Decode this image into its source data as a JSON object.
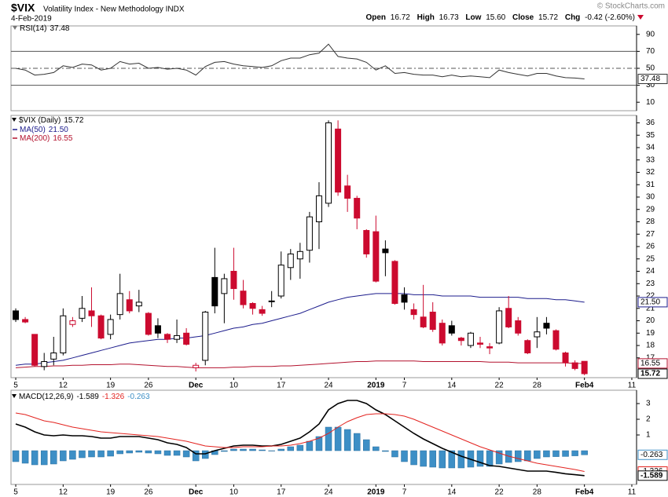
{
  "header": {
    "symbol": "$VIX",
    "name": "Volatility Index - New Methodology INDX",
    "date": "4-Feb-2019",
    "watermark": "© StockCharts.com",
    "open_label": "Open",
    "open": "16.72",
    "high_label": "High",
    "high": "16.73",
    "low_label": "Low",
    "low": "15.60",
    "close_label": "Close",
    "close": "15.72",
    "chg_label": "Chg",
    "chg": "-0.42 (-2.60%)"
  },
  "chart_data": [
    {
      "type": "line",
      "title": "RSI(14)",
      "color": "#333333",
      "values": [
        50,
        48,
        42,
        43,
        45,
        53,
        51,
        55,
        54,
        48,
        50,
        58,
        55,
        56,
        50,
        51,
        49,
        50,
        48,
        42,
        52,
        57,
        58,
        55,
        53,
        52,
        51,
        53,
        59,
        62,
        62,
        66,
        68,
        78.5,
        64,
        62,
        61,
        57,
        48,
        53,
        44,
        45,
        43,
        42,
        42,
        40,
        42,
        40,
        41,
        40,
        39,
        48,
        45,
        43,
        41,
        44,
        44,
        41,
        39,
        38.5,
        37.48,
        null,
        null,
        null,
        null,
        null
      ],
      "ylim": [
        0,
        100
      ],
      "yticks": [
        90,
        70,
        50,
        30,
        10
      ],
      "levels": [
        70,
        50,
        30
      ]
    },
    {
      "type": "candlestick",
      "title": "$VIX (Daily)",
      "up_color": "#000000",
      "down_color": "#cc0a2f",
      "categories": [
        "5",
        null,
        null,
        null,
        null,
        "12",
        null,
        null,
        null,
        null,
        "19",
        null,
        null,
        null,
        "26",
        null,
        null,
        null,
        null,
        "Dec",
        null,
        null,
        null,
        "10",
        null,
        null,
        null,
        null,
        "17",
        null,
        null,
        null,
        null,
        "24",
        null,
        null,
        null,
        null,
        "2019",
        null,
        null,
        "7",
        null,
        null,
        null,
        null,
        "14",
        null,
        null,
        null,
        null,
        "22",
        null,
        null,
        null,
        "28",
        null,
        null,
        null,
        null,
        "Feb4",
        null,
        null,
        null,
        null,
        "11"
      ],
      "open": [
        20.8,
        20.1,
        18.9,
        16.3,
        16.9,
        17.4,
        19.7,
        20.2,
        20.8,
        20.4,
        18.9,
        20.5,
        21.7,
        21.2,
        20.6,
        19.6,
        18.9,
        18.5,
        19.0,
        16.2,
        16.8,
        23.5,
        22.2,
        24.0,
        22.4,
        21.4,
        20.9,
        21.6,
        22.0,
        24.3,
        25.0,
        25.7,
        28.0,
        29.5,
        35.5,
        30.9,
        29.9,
        27.3,
        27.2,
        25.8,
        24.8,
        22.1,
        20.9,
        20.3,
        20.7,
        19.8,
        19.6,
        18.6,
        18.0,
        18.2,
        17.9,
        18.2,
        21.0,
        20.0,
        18.4,
        18.7,
        19.8,
        19.2,
        17.4,
        16.6,
        16.72,
        null,
        null,
        null,
        null,
        null
      ],
      "high": [
        21.0,
        20.3,
        18.9,
        17.4,
        18.7,
        21.0,
        20.3,
        22.0,
        22.7,
        20.5,
        20.5,
        23.8,
        22.4,
        22.5,
        20.7,
        20.2,
        19.0,
        20.1,
        19.4,
        16.6,
        20.8,
        25.9,
        23.8,
        25.9,
        23.3,
        21.5,
        21.2,
        22.4,
        25.6,
        25.8,
        26.3,
        28.8,
        31.2,
        36.2,
        36.2,
        31.8,
        30.1,
        27.4,
        28.5,
        26.5,
        24.9,
        22.7,
        21.4,
        22.9,
        21.5,
        20.1,
        20.0,
        18.7,
        19.1,
        18.7,
        18.2,
        21.1,
        22.0,
        20.3,
        18.5,
        20.3,
        20.3,
        19.3,
        17.5,
        16.8,
        16.73,
        null,
        null,
        null,
        null,
        null
      ],
      "low": [
        19.9,
        19.8,
        16.3,
        16.0,
        16.4,
        17.2,
        19.5,
        19.9,
        19.5,
        18.5,
        18.5,
        20.1,
        20.6,
        20.7,
        18.8,
        18.6,
        18.2,
        18.2,
        18.0,
        15.9,
        16.4,
        20.6,
        19.8,
        21.7,
        21.0,
        20.5,
        20.4,
        21.1,
        21.8,
        23.3,
        23.4,
        24.7,
        25.8,
        29.2,
        30.1,
        28.8,
        27.4,
        25.1,
        23.1,
        23.6,
        21.3,
        20.9,
        20.1,
        19.4,
        19.1,
        18.0,
        18.8,
        18.0,
        17.8,
        17.8,
        17.3,
        18.1,
        19.4,
        18.8,
        17.3,
        17.8,
        18.9,
        17.6,
        16.3,
        16.0,
        15.6,
        null,
        null,
        null,
        null,
        null
      ],
      "close": [
        20.1,
        19.9,
        16.4,
        16.7,
        17.4,
        20.4,
        20.0,
        21.0,
        20.4,
        18.6,
        20.1,
        22.2,
        20.8,
        21.5,
        18.9,
        19.0,
        18.5,
        18.8,
        18.1,
        16.4,
        20.7,
        21.2,
        23.4,
        22.6,
        21.3,
        21.0,
        20.6,
        21.6,
        24.5,
        25.4,
        25.6,
        28.4,
        30.1,
        36.0,
        30.4,
        29.9,
        28.3,
        25.4,
        23.2,
        25.5,
        21.4,
        21.5,
        20.5,
        19.5,
        19.3,
        18.2,
        19.0,
        18.4,
        19.0,
        18.1,
        17.8,
        20.8,
        19.5,
        19.0,
        17.4,
        19.1,
        19.4,
        17.7,
        16.6,
        16.14,
        15.72,
        null,
        null,
        null,
        null,
        null
      ],
      "ylim": [
        15.4,
        36.6
      ],
      "yticks": [
        17,
        18,
        19,
        20,
        21,
        22,
        23,
        24,
        25,
        26,
        27,
        28,
        29,
        30,
        31,
        32,
        33,
        34,
        35,
        36
      ],
      "series": [
        {
          "name": "MA(50)",
          "color": "#1c1c8c",
          "values": [
            16.4,
            16.5,
            16.5,
            16.6,
            16.7,
            16.8,
            17.0,
            17.2,
            17.4,
            17.6,
            17.8,
            18.0,
            18.2,
            18.3,
            18.4,
            18.5,
            18.5,
            18.6,
            18.6,
            18.7,
            18.8,
            19.0,
            19.2,
            19.4,
            19.5,
            19.7,
            19.8,
            20.0,
            20.2,
            20.4,
            20.6,
            20.9,
            21.2,
            21.5,
            21.7,
            21.9,
            22.0,
            22.1,
            22.2,
            22.2,
            22.2,
            22.2,
            22.1,
            22.1,
            22.1,
            22.0,
            22.0,
            22.0,
            22.0,
            21.9,
            21.9,
            21.9,
            21.9,
            21.9,
            21.8,
            21.8,
            21.8,
            21.7,
            21.7,
            21.6,
            21.5,
            null,
            null,
            null,
            null,
            null
          ],
          "value_labels": [
            null,
            null,
            null,
            null,
            null,
            null,
            null,
            null,
            null,
            null,
            null,
            null,
            null,
            null,
            null,
            null,
            null,
            null,
            null,
            null,
            null,
            null,
            null,
            null,
            null,
            null,
            null,
            null,
            null,
            null,
            null,
            null,
            null,
            null,
            null,
            null,
            null,
            null,
            null,
            null,
            null,
            null,
            null,
            null,
            null,
            null,
            null,
            null,
            null,
            null,
            null,
            null,
            null,
            null,
            null,
            null,
            null,
            null,
            null,
            null,
            "21.50",
            null,
            null,
            null,
            null,
            null
          ]
        },
        {
          "name": "MA(200)",
          "color": "#b3122e",
          "values": [
            16.2,
            16.25,
            16.3,
            16.3,
            16.35,
            16.35,
            16.4,
            16.4,
            16.45,
            16.45,
            16.45,
            16.5,
            16.5,
            16.45,
            16.4,
            16.35,
            16.3,
            16.3,
            16.25,
            16.2,
            16.2,
            16.2,
            16.2,
            16.25,
            16.25,
            16.3,
            16.3,
            16.3,
            16.35,
            16.35,
            16.4,
            16.45,
            16.5,
            16.55,
            16.6,
            16.65,
            16.7,
            16.7,
            16.75,
            16.75,
            16.75,
            16.75,
            16.75,
            16.7,
            16.7,
            16.7,
            16.7,
            16.7,
            16.7,
            16.7,
            16.65,
            16.65,
            16.65,
            16.6,
            16.6,
            16.6,
            16.6,
            16.6,
            16.6,
            16.55,
            16.55,
            null,
            null,
            null,
            null,
            null
          ]
        }
      ]
    },
    {
      "type": "macd",
      "title": "MACD(12,26,9)",
      "categories": [
        "5",
        null,
        null,
        null,
        null,
        "12",
        null,
        null,
        null,
        null,
        "19",
        null,
        null,
        null,
        "26",
        null,
        null,
        null,
        null,
        "Dec",
        null,
        null,
        null,
        "10",
        null,
        null,
        null,
        null,
        "17",
        null,
        null,
        null,
        null,
        "24",
        null,
        null,
        null,
        null,
        "2019",
        null,
        null,
        "7",
        null,
        null,
        null,
        null,
        "14",
        null,
        null,
        null,
        null,
        "22",
        null,
        null,
        null,
        "28",
        null,
        null,
        null,
        null,
        "Feb4",
        null,
        null,
        null,
        null,
        "11"
      ],
      "series": [
        {
          "color": "#000000",
          "values": [
            1.7,
            1.5,
            1.2,
            1.0,
            0.95,
            1.0,
            0.95,
            0.95,
            0.9,
            0.8,
            0.8,
            0.9,
            0.9,
            0.9,
            0.8,
            0.7,
            0.5,
            0.4,
            0.2,
            -0.2,
            -0.2,
            0.0,
            0.15,
            0.3,
            0.35,
            0.35,
            0.3,
            0.3,
            0.4,
            0.6,
            0.8,
            1.2,
            1.7,
            2.6,
            3.0,
            3.2,
            3.2,
            3.0,
            2.6,
            2.3,
            1.9,
            1.5,
            1.1,
            0.75,
            0.45,
            0.15,
            -0.1,
            -0.35,
            -0.55,
            -0.75,
            -0.95,
            -1.0,
            -1.1,
            -1.2,
            -1.3,
            -1.3,
            -1.3,
            -1.38,
            -1.47,
            -1.53,
            -1.589,
            null,
            null,
            null,
            null,
            null
          ]
        },
        {
          "color": "#e3231f",
          "values": [
            2.4,
            2.3,
            2.1,
            1.9,
            1.8,
            1.65,
            1.5,
            1.4,
            1.3,
            1.2,
            1.15,
            1.1,
            1.05,
            1.0,
            0.95,
            0.9,
            0.8,
            0.7,
            0.6,
            0.45,
            0.3,
            0.25,
            0.2,
            0.2,
            0.25,
            0.25,
            0.25,
            0.3,
            0.3,
            0.35,
            0.45,
            0.6,
            0.8,
            1.1,
            1.5,
            1.85,
            2.1,
            2.3,
            2.35,
            2.35,
            2.3,
            2.2,
            2.0,
            1.75,
            1.5,
            1.25,
            1.0,
            0.75,
            0.5,
            0.25,
            0.05,
            -0.15,
            -0.35,
            -0.5,
            -0.65,
            -0.8,
            -0.9,
            -1.0,
            -1.1,
            -1.2,
            -1.326,
            null,
            null,
            null,
            null,
            null
          ]
        }
      ],
      "histogram": {
        "color": "#3d8fc6",
        "values": [
          -0.7,
          -0.8,
          -0.9,
          -0.9,
          -0.85,
          -0.65,
          -0.55,
          -0.45,
          -0.4,
          -0.4,
          -0.35,
          -0.2,
          -0.15,
          -0.1,
          -0.15,
          -0.2,
          -0.3,
          -0.3,
          -0.4,
          -0.65,
          -0.5,
          -0.25,
          -0.05,
          0.1,
          0.1,
          0.1,
          0.05,
          0.0,
          0.1,
          0.25,
          0.35,
          0.6,
          0.9,
          1.5,
          1.5,
          1.35,
          1.1,
          0.7,
          0.25,
          -0.05,
          -0.4,
          -0.7,
          -0.9,
          -1.0,
          -1.05,
          -1.1,
          -1.1,
          -1.1,
          -1.05,
          -1.0,
          -1.0,
          -0.85,
          -0.75,
          -0.7,
          -0.65,
          -0.5,
          -0.4,
          -0.38,
          -0.37,
          -0.33,
          -0.263,
          null,
          null,
          null,
          null,
          null
        ]
      },
      "ylim": [
        -2.15,
        3.85
      ],
      "yticks": [
        3,
        2,
        1
      ]
    }
  ]
}
